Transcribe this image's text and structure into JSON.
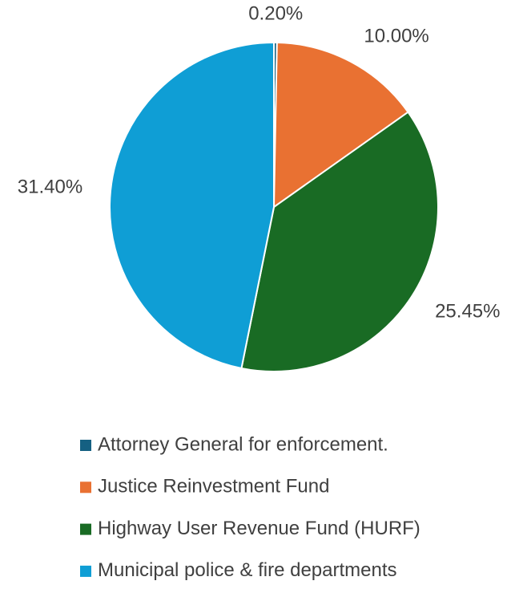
{
  "chart_data": {
    "type": "pie",
    "categories": [
      "Attorney General for enforcement.",
      "Justice Reinvestment Fund",
      "Highway User Revenue Fund (HURF)",
      "Municipal police & fire departments"
    ],
    "values": [
      0.2,
      10,
      25.45,
      31.4
    ],
    "value_labels": [
      "0.20%",
      "10.00%",
      "25.45%",
      "31.40%"
    ],
    "colors": [
      "#156082",
      "#e97132",
      "#196b24",
      "#0f9ed5"
    ],
    "legend": "bottom"
  }
}
